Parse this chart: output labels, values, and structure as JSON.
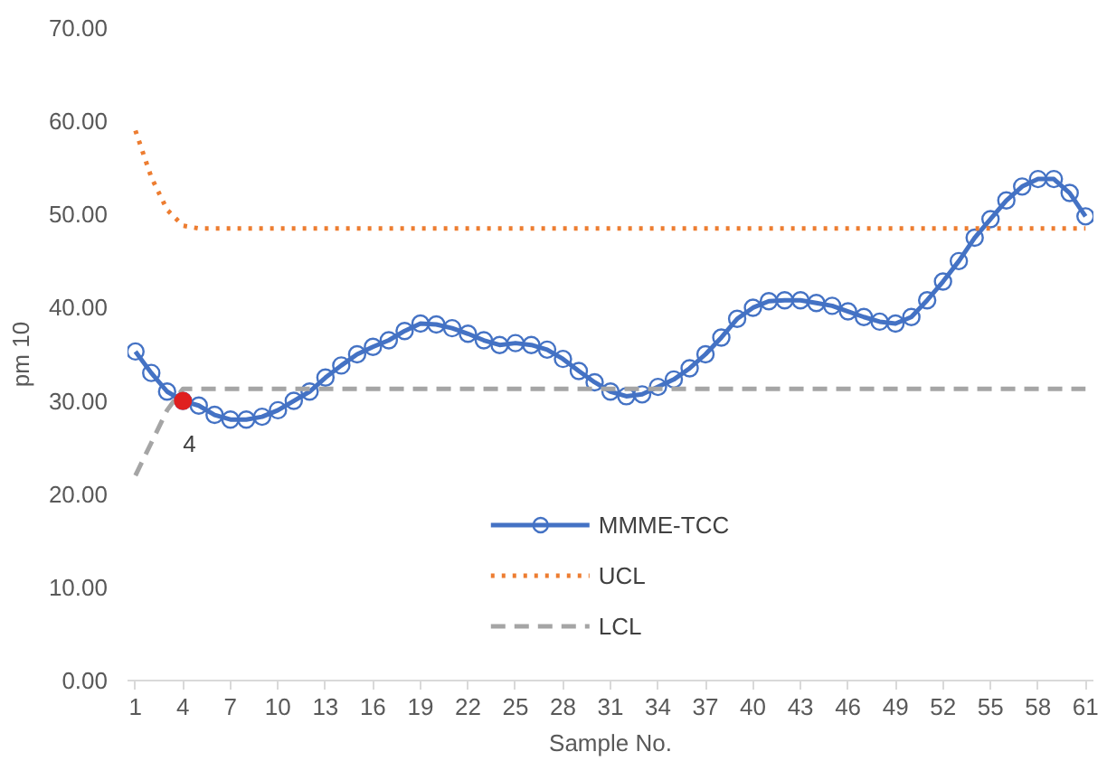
{
  "chart_data": {
    "type": "line",
    "xlabel": "Sample No.",
    "ylabel": "pm 10",
    "x": [
      1,
      2,
      3,
      4,
      5,
      6,
      7,
      8,
      9,
      10,
      11,
      12,
      13,
      14,
      15,
      16,
      17,
      18,
      19,
      20,
      21,
      22,
      23,
      24,
      25,
      26,
      27,
      28,
      29,
      30,
      31,
      32,
      33,
      34,
      35,
      36,
      37,
      38,
      39,
      40,
      41,
      42,
      43,
      44,
      45,
      46,
      47,
      48,
      49,
      50,
      51,
      52,
      53,
      54,
      55,
      56,
      57,
      58,
      59,
      60,
      61
    ],
    "series": [
      {
        "name": "MMME-TCC",
        "color": "#4472c4",
        "marker": "circle",
        "line_style": "solid",
        "values": [
          35.3,
          33,
          31,
          30,
          29.5,
          28.5,
          28,
          28,
          28.3,
          29,
          30,
          31,
          32.5,
          33.8,
          35,
          35.8,
          36.5,
          37.5,
          38.3,
          38.2,
          37.8,
          37.2,
          36.5,
          36,
          36.2,
          36,
          35.5,
          34.5,
          33.2,
          32,
          31,
          30.5,
          30.7,
          31.5,
          32.3,
          33.5,
          35,
          36.8,
          38.8,
          40,
          40.7,
          40.8,
          40.8,
          40.5,
          40.2,
          39.6,
          39,
          38.5,
          38.3,
          39,
          40.8,
          42.8,
          45,
          47.5,
          49.5,
          51.5,
          53,
          53.8,
          53.8,
          52.3,
          49.8
        ]
      },
      {
        "name": "UCL",
        "color": "#ed7d31",
        "marker": "none",
        "line_style": "dotted",
        "values": [
          59,
          54,
          50.5,
          48.8,
          48.5,
          48.5,
          48.5,
          48.5,
          48.5,
          48.5,
          48.5,
          48.5,
          48.5,
          48.5,
          48.5,
          48.5,
          48.5,
          48.5,
          48.5,
          48.5,
          48.5,
          48.5,
          48.5,
          48.5,
          48.5,
          48.5,
          48.5,
          48.5,
          48.5,
          48.5,
          48.5,
          48.5,
          48.5,
          48.5,
          48.5,
          48.5,
          48.5,
          48.5,
          48.5,
          48.5,
          48.5,
          48.5,
          48.5,
          48.5,
          48.5,
          48.5,
          48.5,
          48.5,
          48.5,
          48.5,
          48.5,
          48.5,
          48.5,
          48.5,
          48.5,
          48.5,
          48.5,
          48.5,
          48.5,
          48.5,
          48.5
        ]
      },
      {
        "name": "LCL",
        "color": "#a5a5a5",
        "marker": "none",
        "line_style": "dashed",
        "values": [
          22,
          25.5,
          29,
          31.3,
          31.3,
          31.3,
          31.3,
          31.3,
          31.3,
          31.3,
          31.3,
          31.3,
          31.3,
          31.3,
          31.3,
          31.3,
          31.3,
          31.3,
          31.3,
          31.3,
          31.3,
          31.3,
          31.3,
          31.3,
          31.3,
          31.3,
          31.3,
          31.3,
          31.3,
          31.3,
          31.3,
          31.3,
          31.3,
          31.3,
          31.3,
          31.3,
          31.3,
          31.3,
          31.3,
          31.3,
          31.3,
          31.3,
          31.3,
          31.3,
          31.3,
          31.3,
          31.3,
          31.3,
          31.3,
          31.3,
          31.3,
          31.3,
          31.3,
          31.3,
          31.3,
          31.3,
          31.3,
          31.3,
          31.3,
          31.3,
          31.3
        ]
      },
      {
        "type": "scatter",
        "color": "#e02020",
        "marker": "circle",
        "x": [
          4
        ],
        "values": [
          30
        ]
      }
    ],
    "annotations": [
      {
        "text": "4",
        "x": 4,
        "y": 30
      }
    ],
    "xlim": [
      0.5,
      61.5
    ],
    "xticks": [
      1,
      4,
      7,
      10,
      13,
      16,
      19,
      22,
      25,
      28,
      31,
      34,
      37,
      40,
      43,
      46,
      49,
      52,
      55,
      58,
      61
    ],
    "ylim": [
      0,
      70
    ],
    "yticks": [
      {
        "value": 0,
        "label": "0.00"
      },
      {
        "value": 10,
        "label": "10.00"
      },
      {
        "value": 20,
        "label": "20.00"
      },
      {
        "value": 30,
        "label": "30.00"
      },
      {
        "value": 40,
        "label": "40.00"
      },
      {
        "value": 50,
        "label": "50.00"
      },
      {
        "value": 60,
        "label": "60.00"
      },
      {
        "value": 70,
        "label": "70.00"
      }
    ],
    "grid": false,
    "legend": "bottom"
  }
}
